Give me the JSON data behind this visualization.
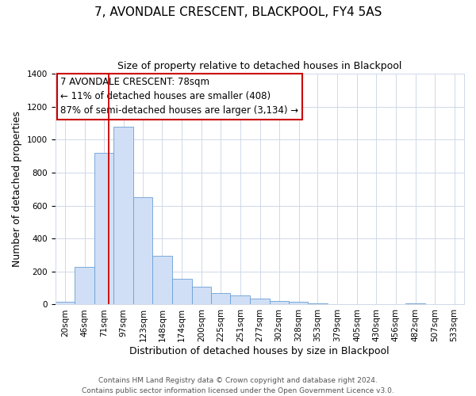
{
  "title": "7, AVONDALE CRESCENT, BLACKPOOL, FY4 5AS",
  "subtitle": "Size of property relative to detached houses in Blackpool",
  "xlabel": "Distribution of detached houses by size in Blackpool",
  "ylabel": "Number of detached properties",
  "bar_labels": [
    "20sqm",
    "46sqm",
    "71sqm",
    "97sqm",
    "123sqm",
    "148sqm",
    "174sqm",
    "200sqm",
    "225sqm",
    "251sqm",
    "277sqm",
    "302sqm",
    "328sqm",
    "353sqm",
    "379sqm",
    "405sqm",
    "430sqm",
    "456sqm",
    "482sqm",
    "507sqm",
    "533sqm"
  ],
  "bar_values": [
    15,
    230,
    920,
    1080,
    650,
    295,
    155,
    107,
    70,
    55,
    35,
    22,
    18,
    5,
    0,
    0,
    0,
    0,
    8,
    0,
    0
  ],
  "bar_color": "#d0dff5",
  "bar_edge_color": "#6b9fd4",
  "ylim": [
    0,
    1400
  ],
  "yticks": [
    0,
    200,
    400,
    600,
    800,
    1000,
    1200,
    1400
  ],
  "property_line_label": "7 AVONDALE CRESCENT: 78sqm",
  "annotation_line1": "← 11% of detached houses are smaller (408)",
  "annotation_line2": "87% of semi-detached houses are larger (3,134) →",
  "annotation_box_color": "#ffffff",
  "annotation_box_edge_color": "#cc0000",
  "vline_color": "#cc0000",
  "footer1": "Contains HM Land Registry data © Crown copyright and database right 2024.",
  "footer2": "Contains public sector information licensed under the Open Government Licence v3.0.",
  "bg_color": "#ffffff",
  "grid_color": "#d0d8e8",
  "title_fontsize": 11,
  "subtitle_fontsize": 9,
  "axis_label_fontsize": 9,
  "tick_label_fontsize": 7.5,
  "annotation_fontsize": 8.5,
  "footer_fontsize": 6.5
}
